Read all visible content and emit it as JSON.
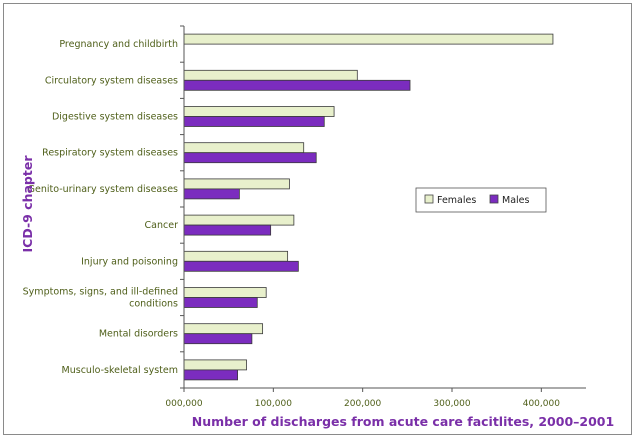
{
  "chart_data": {
    "type": "bar",
    "orientation": "horizontal",
    "categories": [
      "Pregnancy and childbirth",
      "Circulatory system diseases",
      "Digestive system diseases",
      "Respiratory system diseases",
      "Genito-urinary system diseases",
      "Cancer",
      "Injury and poisoning",
      "Symptoms, signs, and ill-defined conditions",
      "Mental disorders",
      "Musculo-skeletal system"
    ],
    "series": [
      {
        "name": "Females",
        "color": "#e8f0cc",
        "values": [
          413000,
          194000,
          168000,
          134000,
          118000,
          123000,
          116000,
          92000,
          88000,
          70000
        ]
      },
      {
        "name": "Males",
        "color": "#7b2cbf",
        "values": [
          0,
          253000,
          157000,
          148000,
          62000,
          97000,
          128000,
          82000,
          76000,
          60000
        ]
      }
    ],
    "xlim": [
      0,
      450000
    ],
    "xticks": [
      0,
      100000,
      200000,
      300000,
      400000
    ],
    "xtick_labels": [
      "000,000",
      "100,000",
      "200,000",
      "300,000",
      "400,000"
    ],
    "xlabel": "Number of discharges from acute care facitlites, 2000–2001",
    "ylabel": "ICD-9 chapter",
    "legend_position": "right-middle",
    "grid": false
  }
}
